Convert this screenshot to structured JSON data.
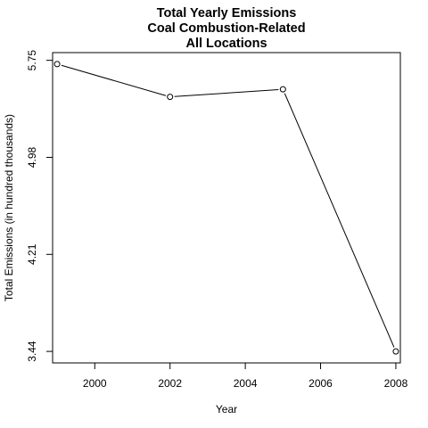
{
  "chart_data": {
    "type": "line",
    "title": [
      "Total Yearly Emissions",
      "Coal Combustion-Related",
      "All Locations"
    ],
    "xlabel": "Year",
    "ylabel": "Total Emissions (in hundred thousands)",
    "x": [
      1999,
      2002,
      2005,
      2008
    ],
    "series": [
      {
        "values": [
          5.72,
          5.46,
          5.52,
          3.44
        ]
      }
    ],
    "xticks": [
      2000,
      2002,
      2004,
      2006,
      2008
    ],
    "xtick_labels": [
      "2000",
      "2002",
      "2004",
      "2006",
      "2008"
    ],
    "yticks": [
      3.44,
      4.21,
      4.98,
      5.75
    ],
    "ytick_labels": [
      "3.44",
      "4.21",
      "4.98",
      "5.75"
    ],
    "xlim": [
      1998.88,
      2008.12
    ],
    "ylim": [
      3.3488,
      5.8112
    ],
    "grid": false,
    "marker": "open-circle",
    "line_color": "#000000"
  }
}
